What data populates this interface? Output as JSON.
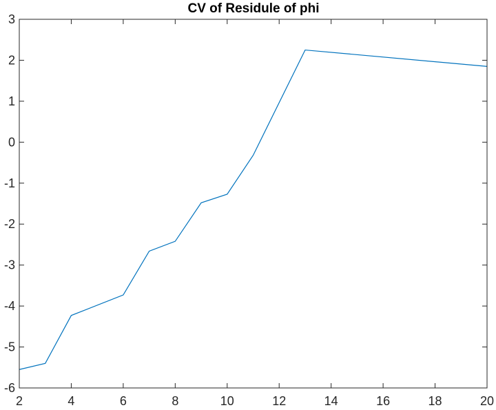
{
  "chart_data": {
    "type": "line",
    "title": "CV of Residule of phi",
    "xlabel": "",
    "ylabel": "",
    "xlim": [
      2,
      20
    ],
    "ylim": [
      -6,
      3
    ],
    "xticks": [
      2,
      4,
      6,
      8,
      10,
      12,
      14,
      16,
      18,
      20
    ],
    "yticks": [
      -6,
      -5,
      -4,
      -3,
      -2,
      -1,
      0,
      1,
      2,
      3
    ],
    "grid": false,
    "box": true,
    "series": [
      {
        "color": "#0072bd",
        "x": [
          2,
          3,
          4,
          6,
          7,
          8,
          9,
          10,
          11,
          13,
          20
        ],
        "y": [
          -5.55,
          -5.4,
          -4.23,
          -3.73,
          -2.66,
          -2.42,
          -1.48,
          -1.27,
          -0.32,
          2.25,
          1.85
        ]
      }
    ]
  }
}
